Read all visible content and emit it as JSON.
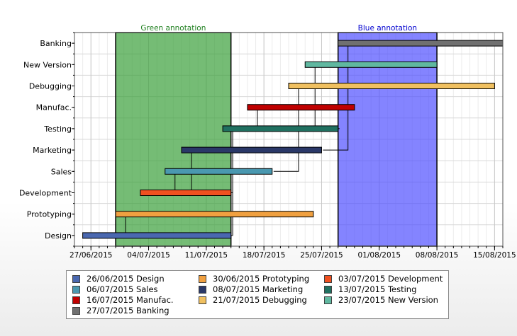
{
  "chart_data": {
    "type": "gantt",
    "x_axis": {
      "type": "date",
      "range": [
        "2015-06-25",
        "2015-08-16"
      ],
      "tick_labels": [
        "27/06/2015",
        "04/07/2015",
        "11/07/2015",
        "18/07/2015",
        "25/07/2015",
        "01/08/2015",
        "08/08/2015",
        "15/08/2015"
      ],
      "tick_dates": [
        "2015-06-27",
        "2015-07-04",
        "2015-07-11",
        "2015-07-18",
        "2015-07-25",
        "2015-08-01",
        "2015-08-08",
        "2015-08-15"
      ]
    },
    "y_categories": [
      "Design",
      "Prototyping",
      "Development",
      "Sales",
      "Marketing",
      "Testing",
      "Manufac.",
      "Debugging",
      "New Version",
      "Banking"
    ],
    "grid": true,
    "tasks": [
      {
        "name": "Design",
        "start": "2015-06-26",
        "end": "2015-07-14",
        "color": "#4a68b0",
        "label": "26/06/2015 Design"
      },
      {
        "name": "Prototyping",
        "start": "2015-06-30",
        "end": "2015-07-24",
        "color": "#f0a040",
        "label": "30/06/2015 Prototyping"
      },
      {
        "name": "Development",
        "start": "2015-07-03",
        "end": "2015-07-14",
        "color": "#f05020",
        "label": "03/07/2015 Development"
      },
      {
        "name": "Sales",
        "start": "2015-07-06",
        "end": "2015-07-19",
        "color": "#4a98b0",
        "label": "06/07/2015 Sales"
      },
      {
        "name": "Marketing",
        "start": "2015-07-08",
        "end": "2015-07-25",
        "color": "#2a3868",
        "label": "08/07/2015 Marketing"
      },
      {
        "name": "Testing",
        "start": "2015-07-13",
        "end": "2015-07-27",
        "color": "#207060",
        "label": "13/07/2015 Testing"
      },
      {
        "name": "Manufac.",
        "start": "2015-07-16",
        "end": "2015-07-29",
        "color": "#c00000",
        "label": "16/07/2015 Manufac."
      },
      {
        "name": "Debugging",
        "start": "2015-07-21",
        "end": "2015-08-15",
        "color": "#f0c060",
        "label": "21/07/2015 Debugging"
      },
      {
        "name": "New Version",
        "start": "2015-07-23",
        "end": "2015-08-08",
        "color": "#60b8a0",
        "label": "23/07/2015 New Version"
      },
      {
        "name": "Banking",
        "start": "2015-07-27",
        "end": "2015-08-16",
        "color": "#707070",
        "label": "27/07/2015 Banking"
      }
    ],
    "dependencies": [
      [
        "Design",
        "Prototyping"
      ],
      [
        "Development",
        "Sales"
      ],
      [
        "Development",
        "Marketing"
      ],
      [
        "Design",
        "Testing"
      ],
      [
        "Sales",
        "Debugging"
      ],
      [
        "Marketing",
        "Banking"
      ],
      [
        "Testing",
        "Manufac."
      ],
      [
        "Testing",
        "New Version"
      ]
    ],
    "annotations": [
      {
        "label": "Green annotation",
        "start": "2015-06-30",
        "end": "2015-07-14",
        "color": "#3aa03a",
        "text_color": "#208020"
      },
      {
        "label": "Blue annotation",
        "start": "2015-07-27",
        "end": "2015-08-08",
        "color": "#5050ff",
        "text_color": "#0000d0"
      }
    ],
    "legend_position": "bottom"
  }
}
